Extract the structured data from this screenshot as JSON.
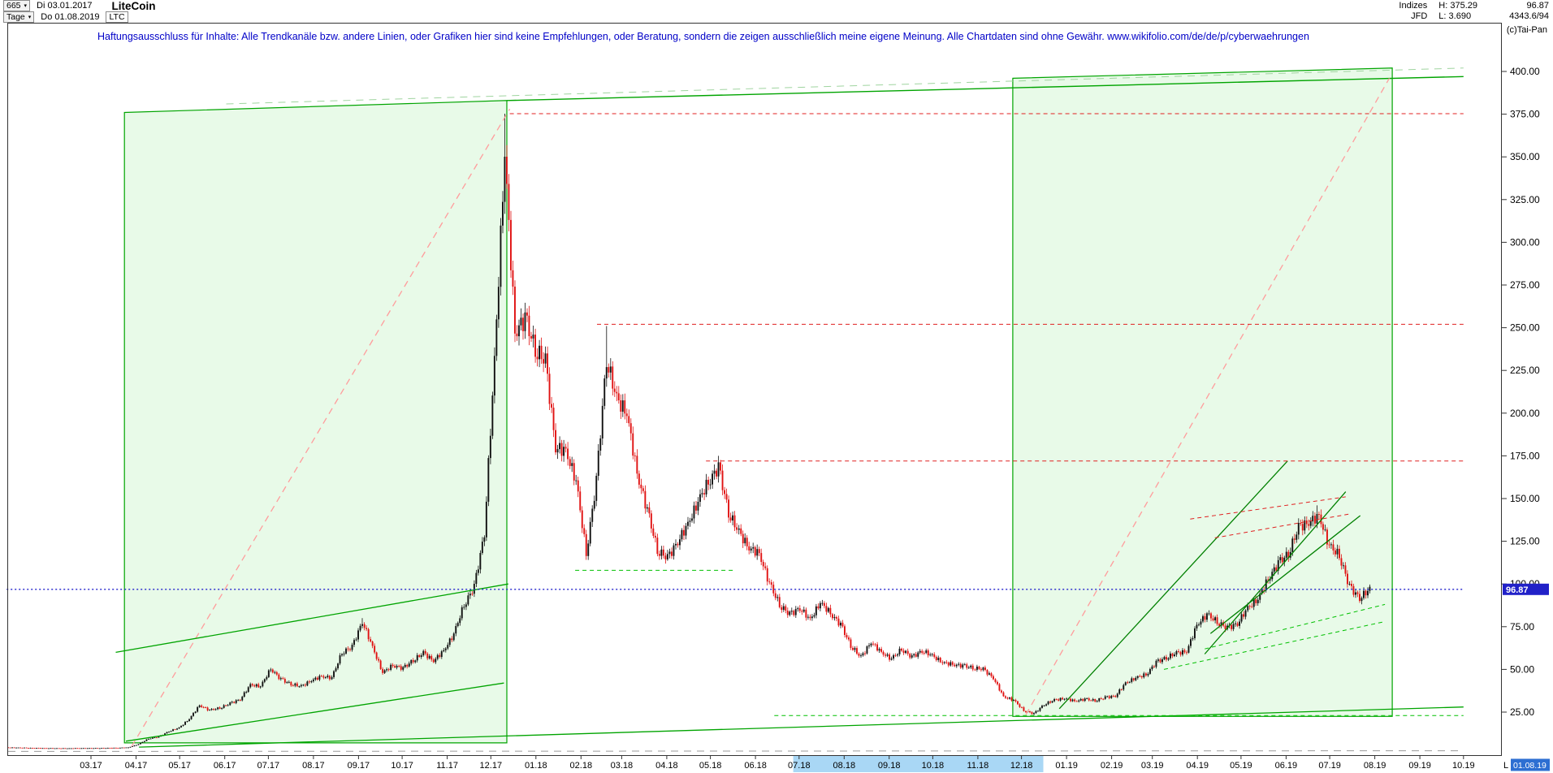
{
  "app": {
    "toolbar": {
      "bars_count": "665",
      "start_date": "Di 03.01.2017",
      "period": "Tage",
      "end_date": "Do 01.08.2019",
      "symbol": "LTC",
      "title": "LiteCoin"
    },
    "info": {
      "exchange": "Indizes",
      "broker": "JFD",
      "high_label": "H:",
      "high": "375.29",
      "low_label": "L:",
      "low": "3.690",
      "last": "96.87",
      "volume": "4343.6/94",
      "copyright": "(c)Tai-Pan"
    },
    "disclaimer_text": "Haftungsausschluss für Inhalte: Alle Trendkanäle bzw. andere Linien, oder Grafiken hier sind keine Empfehlungen, oder Beratung, sondern die zeigen ausschließlich meine eigene Meinung. Alle Chartdaten sind ohne Gewähr.",
    "disclaimer_url": "www.wikifolio.com/de/de/p/cyberwaehrungen"
  },
  "chart_data": {
    "type": "candlestick",
    "title": "LiteCoin",
    "symbol": "LTC",
    "start_date": "2017-01-03",
    "end_date": "2019-08-01",
    "period_high": 375.29,
    "period_low": 3.69,
    "last_price": 96.87,
    "up_color": "#111111",
    "down_color": "#e01212",
    "y_ticks": [
      25,
      50,
      75,
      100,
      125,
      150,
      175,
      200,
      225,
      250,
      275,
      300,
      325,
      350,
      375,
      400
    ],
    "x_ticks": [
      "03.17",
      "04.17",
      "05.17",
      "06.17",
      "07.17",
      "08.17",
      "09.17",
      "10.17",
      "11.17",
      "12.17",
      "01.18",
      "02.18",
      "03.18",
      "04.18",
      "05.18",
      "06.18",
      "07.18",
      "08.18",
      "09.18",
      "10.18",
      "11.18",
      "12.18",
      "01.19",
      "02.19",
      "03.19",
      "04.19",
      "05.19",
      "06.19",
      "07.19",
      "08.19",
      "09.19",
      "10.19"
    ],
    "weekly_closes": [
      4.35,
      4.2,
      4.1,
      3.95,
      3.9,
      3.82,
      3.8,
      3.9,
      3.85,
      3.92,
      4.0,
      4.1,
      4.3,
      6.2,
      9.5,
      10.5,
      13.8,
      15.8,
      21.0,
      29.0,
      26.0,
      27.5,
      30.0,
      32.5,
      41.0,
      40.0,
      50.5,
      44.0,
      41.5,
      40.0,
      43.5,
      46.0,
      45.0,
      60.0,
      63.0,
      78.0,
      63.0,
      48.0,
      52.5,
      50.5,
      55.5,
      59.5,
      55.0,
      61.0,
      70.5,
      88.0,
      98.0,
      130.0,
      230.0,
      352.0,
      248.0,
      255.0,
      238.0,
      230.0,
      180.0,
      178.0,
      160.0,
      118.0,
      160.0,
      232.0,
      208.0,
      200.0,
      165.0,
      143.0,
      120.0,
      115.0,
      125.0,
      135.0,
      148.0,
      160.0,
      168.0,
      142.0,
      130.0,
      121.0,
      118.0,
      100.0,
      88.0,
      82.0,
      86.0,
      79.0,
      89.0,
      83.0,
      76.0,
      64.0,
      57.0,
      66.0,
      60.0,
      56.0,
      62.0,
      57.0,
      61.0,
      58.0,
      54.0,
      53.0,
      52.0,
      51.0,
      50.0,
      45.0,
      34.0,
      32.0,
      26.0,
      24.0,
      29.5,
      32.0,
      33.0,
      31.5,
      32.5,
      31.8,
      33.5,
      34.5,
      42.0,
      45.0,
      47.0,
      54.0,
      57.0,
      59.5,
      60.5,
      76.0,
      82.0,
      78.0,
      74.0,
      77.0,
      86.0,
      91.0,
      103.0,
      112.0,
      118.0,
      133.0,
      136.0,
      140.0,
      122.0,
      117.0,
      98.0,
      92.0,
      96.87
    ],
    "wick_overrides": [
      {
        "week": 49,
        "high": 375.29
      },
      {
        "week": 35,
        "high": 80.0
      },
      {
        "week": 59,
        "high": 251.0
      },
      {
        "week": 70,
        "high": 175.0
      },
      {
        "week": 101,
        "low": 23.1
      },
      {
        "week": 5,
        "low": 3.69
      },
      {
        "week": 129,
        "high": 146.0
      }
    ],
    "x_selection": {
      "d1": 540,
      "d2": 712,
      "color": "#a9d7f5"
    },
    "overlays": {
      "boxes": [
        {
          "d1": 80,
          "d2": 343,
          "top1": 376,
          "top2": 383,
          "bottom": 7,
          "stroke": "#00a400",
          "fill": "rgba(0,200,0,0.09)"
        },
        {
          "d1": 691,
          "d2": 952,
          "top1": 396,
          "top2": 402,
          "bottom": 22.5,
          "stroke": "#00a400",
          "fill": "rgba(0,200,0,0.09)"
        }
      ],
      "lines": [
        {
          "d1": 343,
          "p1": 383,
          "d2": 1001,
          "p2": 397,
          "c": "#00a400",
          "w": 1.4
        },
        {
          "d1": 150,
          "p1": 381,
          "d2": 1001,
          "p2": 402,
          "c": "#9fd49f",
          "w": 1,
          "dash": "9,7"
        },
        {
          "d1": 85,
          "p1": 5,
          "d2": 345,
          "p2": 378,
          "c": "#ff9c9c",
          "w": 1.3,
          "dash": "8,6"
        },
        {
          "d1": 700,
          "p1": 23.5,
          "d2": 950,
          "p2": 396,
          "c": "#ff9c9c",
          "w": 1.3,
          "dash": "8,6"
        },
        {
          "d1": 81,
          "p1": 8,
          "d2": 341,
          "p2": 42,
          "c": "#00a400",
          "w": 1.3
        },
        {
          "d1": 74,
          "p1": 60,
          "d2": 344,
          "p2": 100,
          "c": "#00a400",
          "w": 1.3
        },
        {
          "d1": 90,
          "p1": 4.5,
          "d2": 1001,
          "p2": 28,
          "c": "#00a400",
          "w": 1.3
        },
        {
          "d1": 723,
          "p1": 27,
          "d2": 880,
          "p2": 172,
          "c": "#008000",
          "w": 1.3
        },
        {
          "d1": 823,
          "p1": 59,
          "d2": 920,
          "p2": 154,
          "c": "#008000",
          "w": 1.3
        },
        {
          "d1": 827,
          "p1": 71,
          "d2": 930,
          "p2": 140,
          "c": "#008000",
          "w": 1.3
        },
        {
          "d1": 823,
          "p1": 62,
          "d2": 947,
          "p2": 88,
          "c": "#00c000",
          "w": 1,
          "dash": "5,4"
        },
        {
          "d1": 795,
          "p1": 50,
          "d2": 947,
          "p2": 78,
          "c": "#00c000",
          "w": 1,
          "dash": "5,4"
        },
        {
          "d1": 813,
          "p1": 138,
          "d2": 920,
          "p2": 151,
          "c": "#e02020",
          "w": 1,
          "dash": "5,4"
        },
        {
          "d1": 830,
          "p1": 127,
          "d2": 923,
          "p2": 141,
          "c": "#e02020",
          "w": 1,
          "dash": "5,4"
        },
        {
          "d1": 0,
          "p1": 2,
          "d2": 1001,
          "p2": 2.4,
          "c": "#9a9a9a",
          "w": 1,
          "dash": "9,7"
        }
      ],
      "hlines": [
        {
          "p": 375.3,
          "d1": 345,
          "d2": 1001,
          "c": "#e02020",
          "dash": "5,4",
          "w": 1
        },
        {
          "p": 252,
          "d1": 405,
          "d2": 1001,
          "c": "#e02020",
          "dash": "5,4",
          "w": 1
        },
        {
          "p": 172,
          "d1": 480,
          "d2": 1001,
          "c": "#e02020",
          "dash": "5,4",
          "w": 1
        },
        {
          "p": 108,
          "d1": 390,
          "d2": 500,
          "c": "#00c000",
          "dash": "5,4",
          "w": 1
        },
        {
          "p": 23,
          "d1": 527,
          "d2": 1001,
          "c": "#00c000",
          "dash": "5,4",
          "w": 1
        },
        {
          "p": 96.87,
          "d1": -1,
          "d2": 1001,
          "c": "#2020cc",
          "dash": "2,3",
          "w": 1.3
        }
      ]
    },
    "last_label": {
      "text": "96.87",
      "bg": "#2121c8",
      "fg": "#ffffff"
    },
    "last_date_marker": {
      "prefix": "L",
      "text": "01.08.19",
      "bg": "#2d6fd2",
      "fg": "#ffffff"
    }
  }
}
